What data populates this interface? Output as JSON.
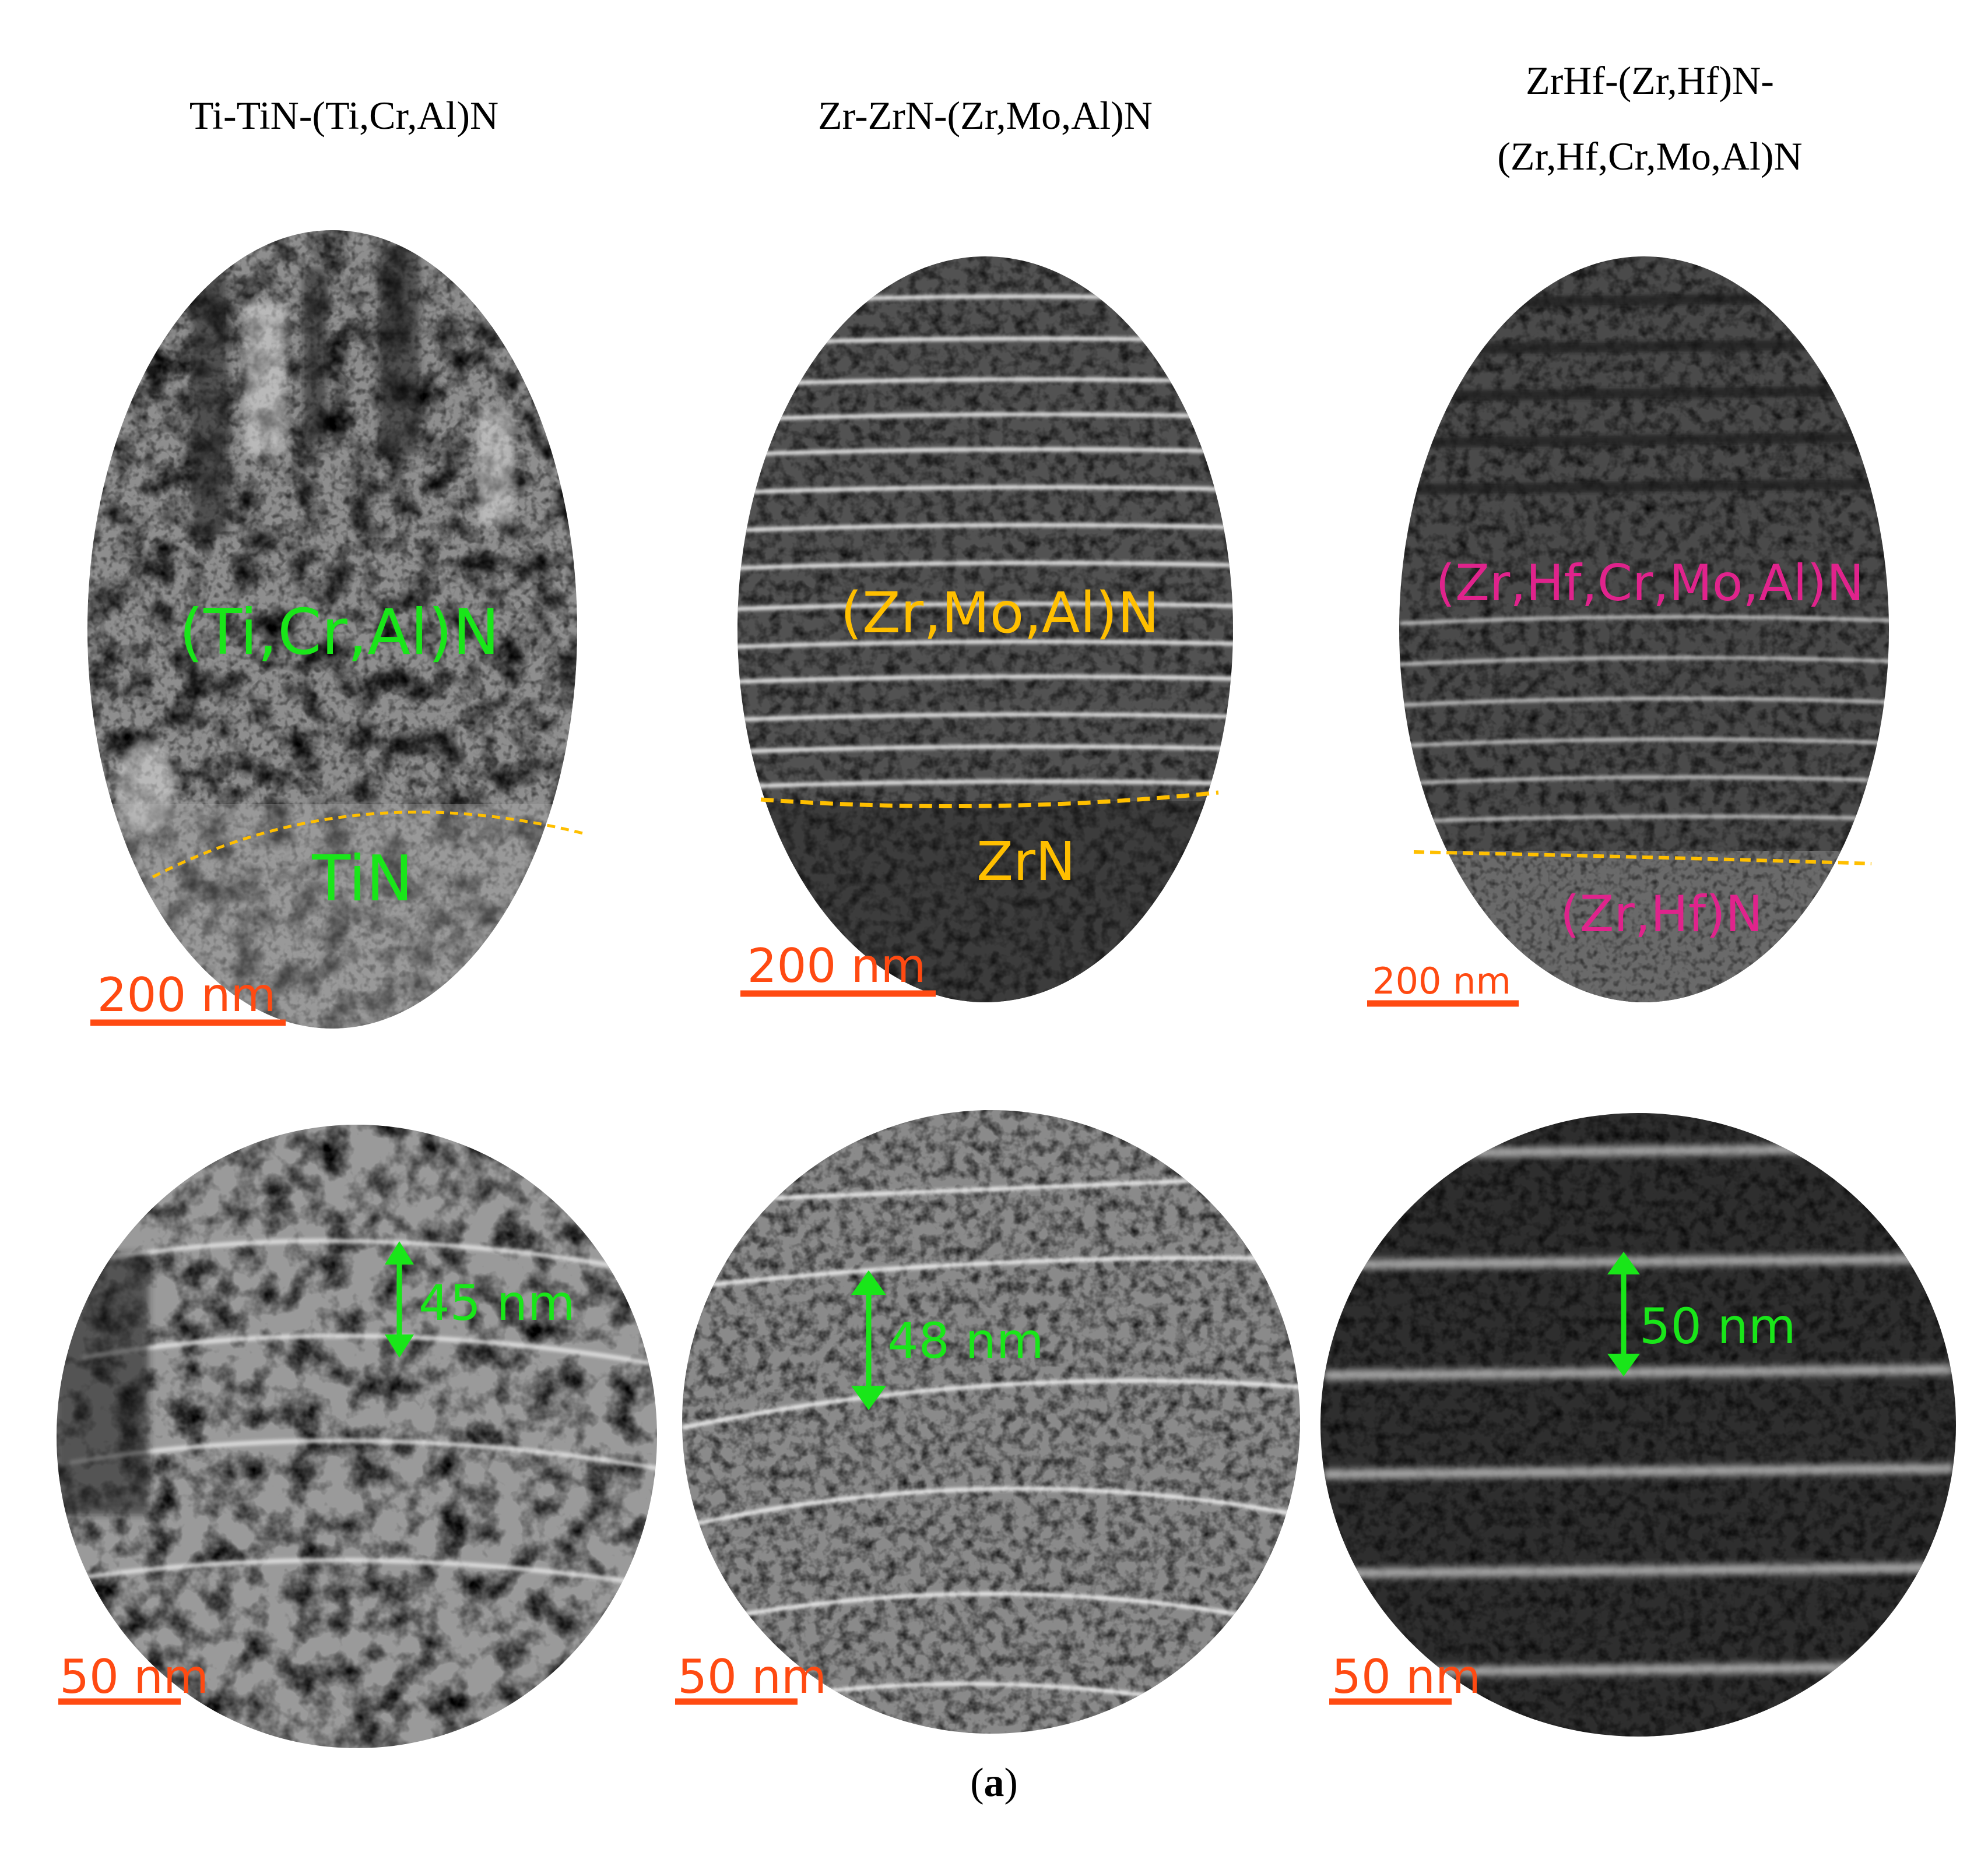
{
  "titles": {
    "col1": "Ti-TiN-(Ti,Cr,Al)N",
    "col2": "Zr-ZrN-(Zr,Mo,Al)N",
    "col3_line1": "ZrHf-(Zr,Hf)N-",
    "col3_line2": "(Zr,Hf,Cr,Mo,Al)N"
  },
  "panels_top": [
    {
      "upper_label": "(Ti,Cr,Al)N",
      "lower_label": "TiN",
      "scale_bar": "200 nm",
      "label_color": "#19e619"
    },
    {
      "upper_label": "(Zr,Mo,Al)N",
      "lower_label": "ZrN",
      "scale_bar": "200 nm",
      "label_color": "#ffbf00"
    },
    {
      "upper_label": "(Zr,Hf,Cr,Mo,Al)N",
      "lower_label": "(Zr,Hf)N",
      "scale_bar": "200 nm",
      "label_color": "#e0238c"
    }
  ],
  "panels_bottom": [
    {
      "period_label": "45 nm",
      "scale_bar": "50 nm"
    },
    {
      "period_label": "48 nm",
      "scale_bar": "50 nm"
    },
    {
      "period_label": "50 nm",
      "scale_bar": "50 nm"
    }
  ],
  "caption": {
    "open": "(",
    "letter": "a",
    "close": ")"
  },
  "colors": {
    "scale_bar": "#ff4a12",
    "interface_line": "#ffbf00",
    "arrow": "#19e619"
  }
}
